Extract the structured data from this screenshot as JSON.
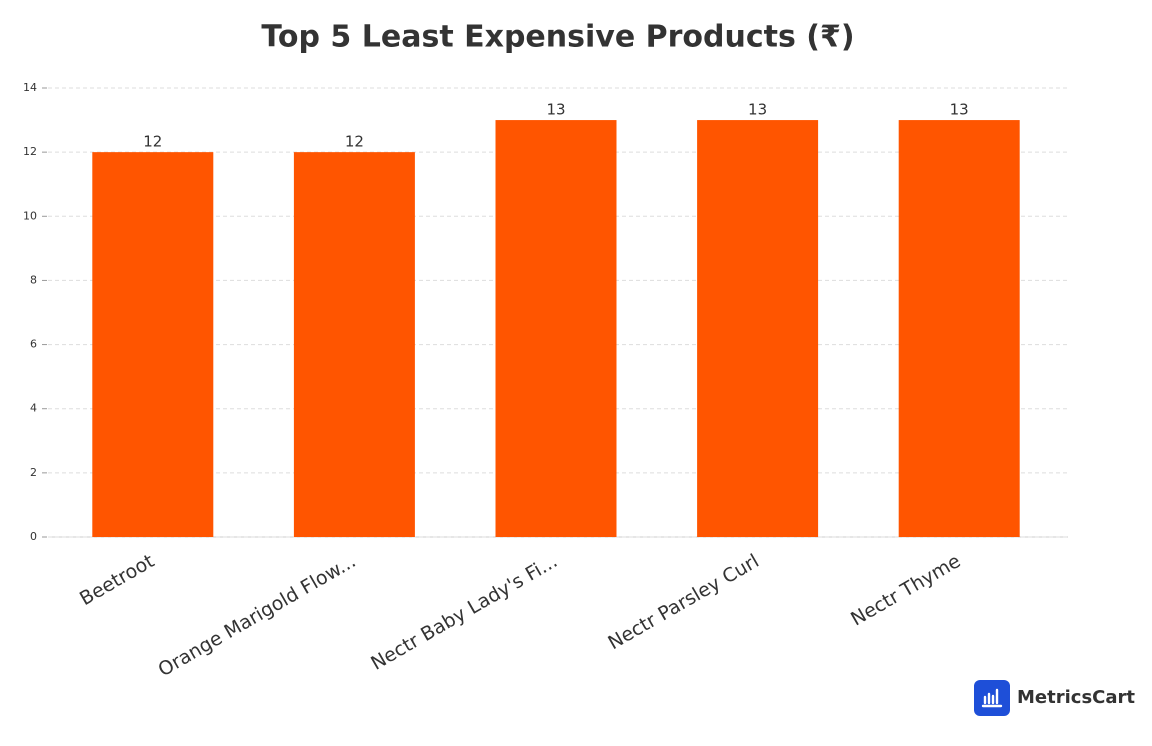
{
  "chart_data": {
    "type": "bar",
    "title": "Top 5 Least Expensive Products (₹)",
    "categories": [
      "Beetroot",
      "Orange Marigold Flow...",
      "Nectr Baby Lady's Fi...",
      "Nectr Parsley Curl",
      "Nectr Thyme"
    ],
    "values": [
      12,
      12,
      13,
      13,
      13
    ],
    "color": "#ff5500",
    "ylim": [
      0,
      14
    ],
    "yticks": [
      0,
      2,
      4,
      6,
      8,
      10,
      12,
      14
    ],
    "grid": true,
    "watermark": "MetricsCart"
  }
}
